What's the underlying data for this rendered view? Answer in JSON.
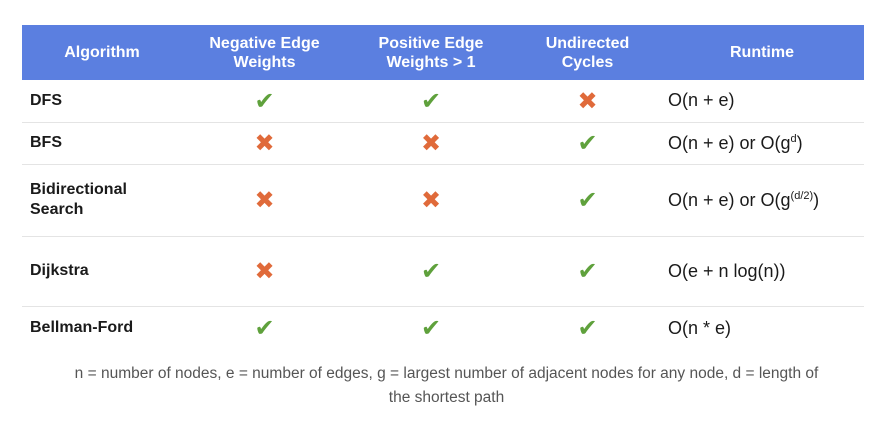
{
  "table": {
    "headers": {
      "algorithm": "Algorithm",
      "negative_1": "Negative Edge",
      "negative_2": "Weights",
      "positive_1": "Positive Edge",
      "positive_2": "Weights > 1",
      "undirected_1": "Undirected",
      "undirected_2": "Cycles",
      "runtime": "Runtime"
    },
    "rows": [
      {
        "name": "DFS",
        "negative_edge_weights": "✔",
        "positive_edge_weights": "✔",
        "undirected_cycles": "✖",
        "runtime_main": "O(n + e)",
        "runtime_sup": "",
        "runtime_tail": ""
      },
      {
        "name": "BFS",
        "negative_edge_weights": "✖",
        "positive_edge_weights": "✖",
        "undirected_cycles": "✔",
        "runtime_main": "O(n + e) or O(g",
        "runtime_sup": "d",
        "runtime_tail": ")"
      },
      {
        "name_1": "Bidirectional",
        "name_2": "Search",
        "negative_edge_weights": "✖",
        "positive_edge_weights": "✖",
        "undirected_cycles": "✔",
        "runtime_main": "O(n + e) or O(g",
        "runtime_sup": "(d/2)",
        "runtime_tail": ")"
      },
      {
        "name": "Dijkstra",
        "negative_edge_weights": "✖",
        "positive_edge_weights": "✔",
        "undirected_cycles": "✔",
        "runtime_main": "O(e + n log(n))",
        "runtime_sup": "",
        "runtime_tail": ""
      },
      {
        "name": "Bellman-Ford",
        "negative_edge_weights": "✔",
        "positive_edge_weights": "✔",
        "undirected_cycles": "✔",
        "runtime_main": "O(n * e)",
        "runtime_sup": "",
        "runtime_tail": ""
      }
    ]
  },
  "footnote": {
    "line_1": "n = number of nodes, e = number of edges, g = largest number of adjacent nodes for any node, d = length of",
    "line_2": "the shortest path"
  },
  "colors": {
    "header_bg": "#5b7fe0",
    "check": "#5fa13c",
    "cross": "#e06a3a"
  },
  "icons": {
    "check": "check-icon",
    "cross": "cross-icon"
  }
}
